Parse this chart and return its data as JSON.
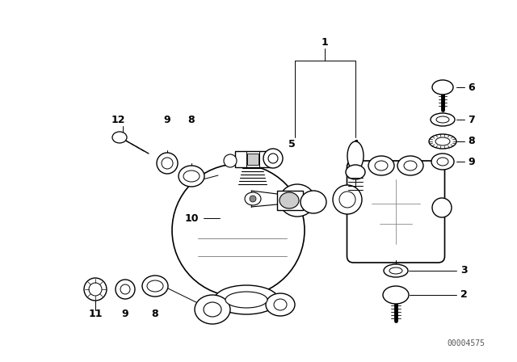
{
  "bg_color": "#ffffff",
  "line_color": "#000000",
  "diagram_id": "00004575",
  "label_fontsize": 9,
  "diagram_id_fontsize": 7
}
